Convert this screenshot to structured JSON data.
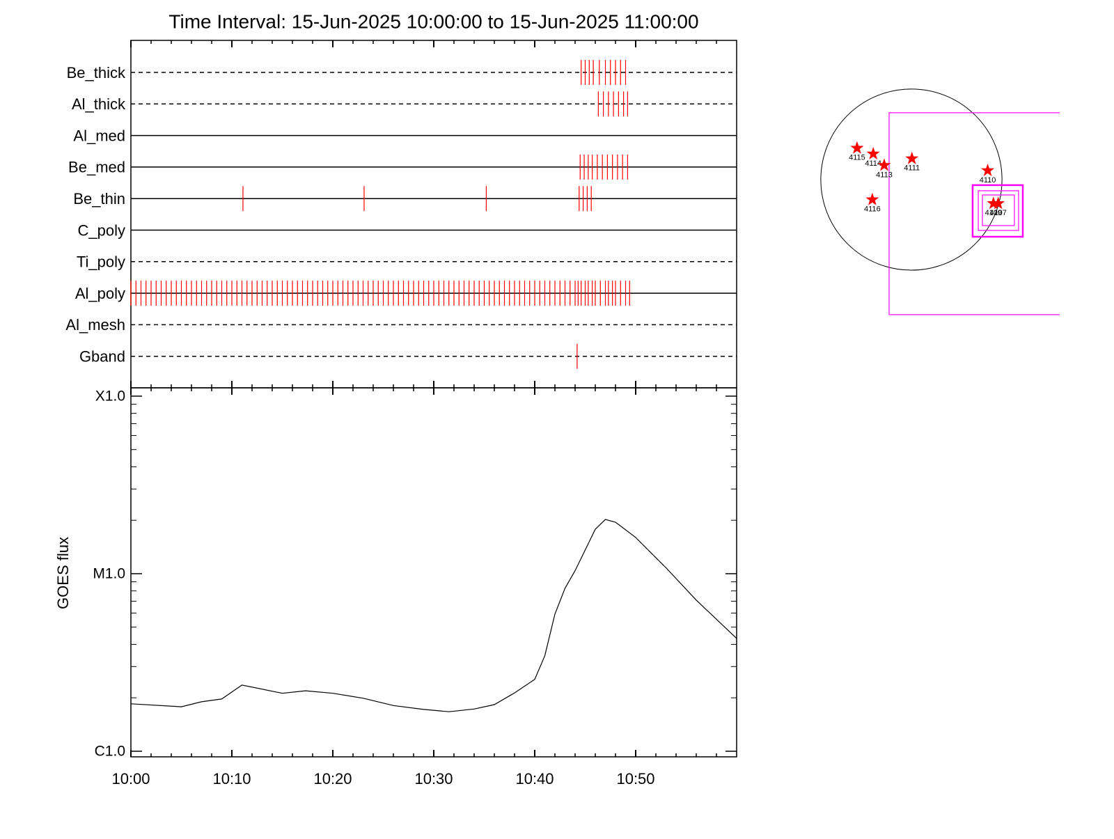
{
  "chart_data": [
    {
      "type": "event",
      "title": "Time Interval: 15-Jun-2025 10:00:00 to 15-Jun-2025 11:00:00",
      "color": "#ff0000",
      "rows": [
        {
          "name": "Be_thick",
          "style": "dashed",
          "events": [
            44.6,
            45,
            45.4,
            45.8,
            46.4,
            47,
            47.5,
            48,
            48.5,
            49
          ]
        },
        {
          "name": "Al_thick",
          "style": "dashed",
          "events": [
            46.3,
            46.8,
            47.3,
            47.8,
            48.3,
            48.8,
            49.2
          ]
        },
        {
          "name": "Al_med",
          "style": "solid",
          "events": []
        },
        {
          "name": "Be_med",
          "style": "solid",
          "events": [
            44.5,
            44.9,
            45.3,
            45.7,
            46.2,
            46.7,
            47.2,
            47.7,
            48.2,
            48.7,
            49.2
          ]
        },
        {
          "name": "Be_thin",
          "style": "solid",
          "events": [
            11.1,
            23.1,
            35.2,
            44.4,
            44.8,
            45.2,
            45.6
          ]
        },
        {
          "name": "C_poly",
          "style": "solid",
          "events": []
        },
        {
          "name": "Ti_poly",
          "style": "dashed",
          "events": []
        },
        {
          "name": "Al_poly",
          "style": "solid",
          "events": [
            0,
            0.5,
            1,
            1.5,
            2,
            2.5,
            3,
            3.5,
            4,
            4.5,
            5,
            5.5,
            6,
            6.5,
            7,
            7.5,
            8,
            8.5,
            9,
            9.5,
            10,
            10.5,
            11,
            11.5,
            12,
            12.5,
            13,
            13.5,
            14,
            14.5,
            15,
            15.5,
            16,
            16.5,
            17,
            17.5,
            18,
            18.5,
            19,
            19.5,
            20,
            20.5,
            21,
            21.5,
            22,
            22.5,
            23,
            23.5,
            24,
            24.5,
            25,
            25.5,
            26,
            26.5,
            27,
            27.5,
            28,
            28.5,
            29,
            29.5,
            30,
            30.5,
            31,
            31.5,
            32,
            32.5,
            33,
            33.5,
            34,
            34.5,
            35,
            35.5,
            36,
            36.5,
            37,
            37.5,
            38,
            38.5,
            39,
            39.5,
            40,
            40.5,
            41,
            41.5,
            42,
            42.5,
            43,
            43.5,
            44,
            44.3,
            44.6,
            45,
            45.3,
            45.7,
            46,
            46.5,
            47,
            47.3,
            47.7,
            48,
            48.5,
            49,
            49.4
          ]
        },
        {
          "name": "Al_mesh",
          "style": "dashed",
          "events": []
        },
        {
          "name": "Gband",
          "style": "dashed",
          "events": [
            44.2
          ]
        }
      ]
    },
    {
      "type": "line",
      "ylabel": "GOES flux",
      "color": "#000000",
      "log": true,
      "x": [
        0,
        5,
        7,
        9,
        11,
        15,
        17.3,
        20,
        23,
        26,
        29,
        31.5,
        34,
        36,
        38,
        40,
        41,
        42,
        43,
        44,
        45,
        46,
        47,
        48,
        50,
        53,
        56,
        60
      ],
      "values": [
        1.85e-06,
        1.78e-06,
        1.9e-06,
        1.97e-06,
        2.36e-06,
        2.12e-06,
        2.19e-06,
        2.12e-06,
        1.99e-06,
        1.81e-06,
        1.72e-06,
        1.67e-06,
        1.73e-06,
        1.83e-06,
        2.13e-06,
        2.54e-06,
        3.45e-06,
        5.92e-06,
        8.28e-06,
        1.04e-05,
        1.36e-05,
        1.78e-05,
        2.02e-05,
        1.95e-05,
        1.6e-05,
        1.08e-05,
        7.1e-06,
        4.32e-06
      ],
      "xlim": [
        0,
        60
      ],
      "xticks": [
        {
          "value": 0,
          "label": "10:00"
        },
        {
          "value": 10,
          "label": "10:10"
        },
        {
          "value": 20,
          "label": "10:20"
        },
        {
          "value": 30,
          "label": "10:30"
        },
        {
          "value": 40,
          "label": "10:40"
        },
        {
          "value": 50,
          "label": "10:50"
        }
      ],
      "xminorticks": [
        2,
        4,
        6,
        8,
        12,
        14,
        16,
        18,
        22,
        24,
        26,
        28,
        32,
        34,
        36,
        38,
        42,
        44,
        46,
        48,
        52,
        54,
        56,
        58
      ],
      "ylim": [
        9.3e-07,
        0.0001114
      ],
      "yticks": [
        {
          "value": 1e-06,
          "label": "C1.0"
        },
        {
          "value": 1e-05,
          "label": "M1.0"
        },
        {
          "value": 0.0001,
          "label": "X1.0"
        }
      ],
      "yminorticks": [
        2e-06,
        3e-06,
        4e-06,
        5e-06,
        6e-06,
        7e-06,
        8e-06,
        9e-06,
        2e-05,
        3e-05,
        4e-05,
        5e-05,
        6e-05,
        7e-05,
        8e-05,
        9e-05
      ]
    },
    {
      "type": "map",
      "xlim": [
        -1015,
        1555
      ],
      "ylim": [
        -1475,
        1153
      ],
      "solar_radius": 950,
      "star_color": "#ff0000",
      "box_color": "#ff00ff",
      "regions": [
        {
          "name": "4115",
          "x": -570,
          "y": 330
        },
        {
          "name": "4114",
          "x": -400,
          "y": 270
        },
        {
          "name": "4113",
          "x": -285,
          "y": 150
        },
        {
          "name": "4111",
          "x": 5,
          "y": 220
        },
        {
          "name": "4110",
          "x": 800,
          "y": 95
        },
        {
          "name": "4116",
          "x": -410,
          "y": -210
        },
        {
          "name": "4109",
          "x": 860,
          "y": -250
        },
        {
          "name": "4107",
          "x": 910,
          "y": -250
        }
      ],
      "boxes": [
        {
          "x": [
            -234,
            1600
          ],
          "y": [
            -1416,
            701
          ]
        },
        {
          "x": [
            642,
            1168
          ],
          "y": [
            -599,
            -58
          ]
        },
        {
          "x": [
            701,
            1124
          ],
          "y": [
            -533,
            -117
          ]
        },
        {
          "x": [
            745,
            1080
          ],
          "y": [
            -482,
            -161
          ]
        }
      ]
    }
  ]
}
